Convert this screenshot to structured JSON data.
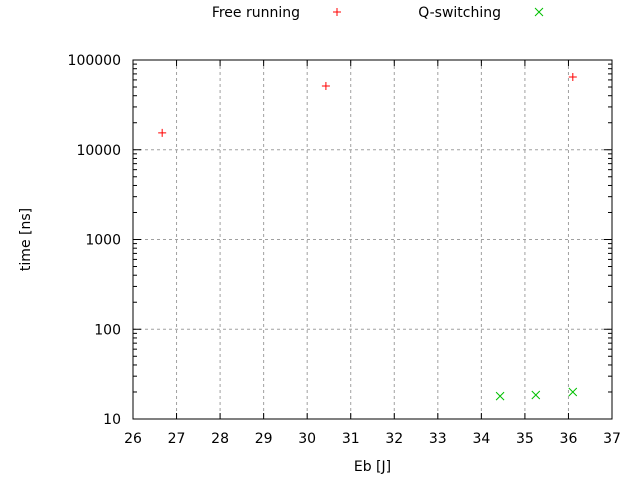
{
  "chart_data": {
    "type": "scatter",
    "xlabel": "Eb [J]",
    "ylabel": "time [ns]",
    "xlim": [
      26,
      37
    ],
    "ylim": [
      10,
      100000
    ],
    "yscale": "log",
    "grid": true,
    "legend_placement": "top-center",
    "xticks": [
      "26",
      "27",
      "28",
      "29",
      "30",
      "31",
      "32",
      "33",
      "34",
      "35",
      "36",
      "37"
    ],
    "yticks": [
      "10",
      "100",
      "1000",
      "10000",
      "100000"
    ],
    "series": [
      {
        "name": "Free running",
        "marker": "plus",
        "color": "#ff0000",
        "points": [
          [
            26.67,
            15400
          ],
          [
            30.43,
            51300
          ],
          [
            36.1,
            64600
          ]
        ]
      },
      {
        "name": "Q-switching",
        "marker": "cross",
        "color": "#00c000",
        "points": [
          [
            34.43,
            18.0
          ],
          [
            35.25,
            18.5
          ],
          [
            36.1,
            20.0
          ]
        ]
      }
    ]
  }
}
